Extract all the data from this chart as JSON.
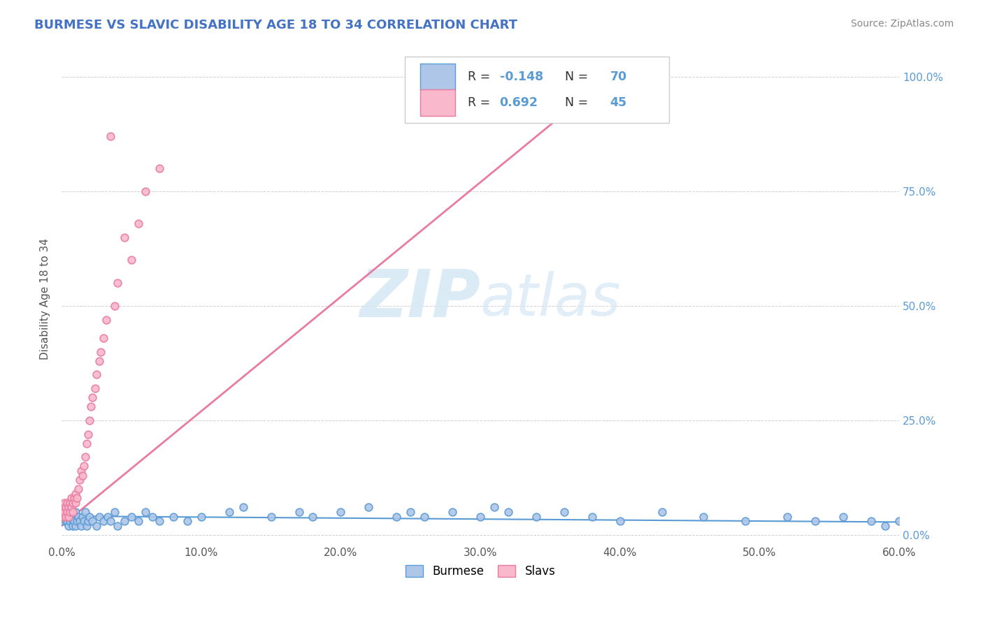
{
  "title": "BURMESE VS SLAVIC DISABILITY AGE 18 TO 34 CORRELATION CHART",
  "source_text": "Source: ZipAtlas.com",
  "ylabel": "Disability Age 18 to 34",
  "xlim": [
    0.0,
    0.6
  ],
  "ylim": [
    -0.02,
    1.05
  ],
  "x_tick_labels": [
    "0.0%",
    "10.0%",
    "20.0%",
    "30.0%",
    "40.0%",
    "50.0%",
    "60.0%"
  ],
  "x_tick_values": [
    0.0,
    0.1,
    0.2,
    0.3,
    0.4,
    0.5,
    0.6
  ],
  "y_tick_labels": [
    "0.0%",
    "25.0%",
    "50.0%",
    "75.0%",
    "100.0%"
  ],
  "y_tick_values": [
    0.0,
    0.25,
    0.5,
    0.75,
    1.0
  ],
  "burmese_color": "#aec6e8",
  "slavic_color": "#f9b8cb",
  "burmese_edge_color": "#5b9bd5",
  "slavic_edge_color": "#e87ca0",
  "burmese_line_color": "#5b9bd5",
  "slavic_line_color": "#e87ca0",
  "R_burmese": -0.148,
  "N_burmese": 70,
  "R_slavic": 0.692,
  "N_slavic": 45,
  "title_color": "#4472c4",
  "axis_color": "#5b9bd5",
  "source_color": "#888888",
  "watermark_color": "#d5e8f5",
  "burmese_scatter_x": [
    0.001,
    0.002,
    0.003,
    0.003,
    0.004,
    0.005,
    0.005,
    0.006,
    0.006,
    0.007,
    0.008,
    0.008,
    0.009,
    0.009,
    0.01,
    0.01,
    0.011,
    0.012,
    0.013,
    0.014,
    0.015,
    0.016,
    0.017,
    0.018,
    0.019,
    0.02,
    0.022,
    0.025,
    0.027,
    0.03,
    0.033,
    0.035,
    0.038,
    0.04,
    0.045,
    0.05,
    0.055,
    0.06,
    0.065,
    0.07,
    0.08,
    0.09,
    0.1,
    0.12,
    0.13,
    0.15,
    0.17,
    0.18,
    0.2,
    0.22,
    0.24,
    0.25,
    0.26,
    0.28,
    0.3,
    0.31,
    0.32,
    0.34,
    0.36,
    0.38,
    0.4,
    0.43,
    0.46,
    0.49,
    0.52,
    0.54,
    0.56,
    0.58,
    0.59,
    0.6
  ],
  "burmese_scatter_y": [
    0.03,
    0.04,
    0.03,
    0.05,
    0.03,
    0.04,
    0.02,
    0.05,
    0.03,
    0.04,
    0.03,
    0.02,
    0.04,
    0.03,
    0.05,
    0.02,
    0.03,
    0.04,
    0.03,
    0.02,
    0.04,
    0.03,
    0.05,
    0.02,
    0.03,
    0.04,
    0.03,
    0.02,
    0.04,
    0.03,
    0.04,
    0.03,
    0.05,
    0.02,
    0.03,
    0.04,
    0.03,
    0.05,
    0.04,
    0.03,
    0.04,
    0.03,
    0.04,
    0.05,
    0.06,
    0.04,
    0.05,
    0.04,
    0.05,
    0.06,
    0.04,
    0.05,
    0.04,
    0.05,
    0.04,
    0.06,
    0.05,
    0.04,
    0.05,
    0.04,
    0.03,
    0.05,
    0.04,
    0.03,
    0.04,
    0.03,
    0.04,
    0.03,
    0.02,
    0.03
  ],
  "slavic_scatter_x": [
    0.001,
    0.001,
    0.002,
    0.002,
    0.003,
    0.003,
    0.004,
    0.004,
    0.005,
    0.005,
    0.006,
    0.006,
    0.007,
    0.007,
    0.008,
    0.008,
    0.009,
    0.01,
    0.01,
    0.011,
    0.012,
    0.013,
    0.014,
    0.015,
    0.016,
    0.017,
    0.018,
    0.019,
    0.02,
    0.021,
    0.022,
    0.024,
    0.025,
    0.027,
    0.028,
    0.03,
    0.032,
    0.035,
    0.038,
    0.04,
    0.045,
    0.05,
    0.055,
    0.06,
    0.07
  ],
  "slavic_scatter_y": [
    0.04,
    0.06,
    0.05,
    0.07,
    0.04,
    0.06,
    0.05,
    0.07,
    0.06,
    0.04,
    0.07,
    0.05,
    0.08,
    0.06,
    0.07,
    0.05,
    0.08,
    0.07,
    0.09,
    0.08,
    0.1,
    0.12,
    0.14,
    0.13,
    0.15,
    0.17,
    0.2,
    0.22,
    0.25,
    0.28,
    0.3,
    0.32,
    0.35,
    0.38,
    0.4,
    0.43,
    0.47,
    0.87,
    0.5,
    0.55,
    0.65,
    0.6,
    0.68,
    0.75,
    0.8
  ],
  "slavic_line_x": [
    0.0,
    0.4
  ],
  "slavic_line_y": [
    0.02,
    1.02
  ],
  "burmese_line_x": [
    0.0,
    0.6
  ],
  "burmese_line_y": [
    0.041,
    0.028
  ]
}
